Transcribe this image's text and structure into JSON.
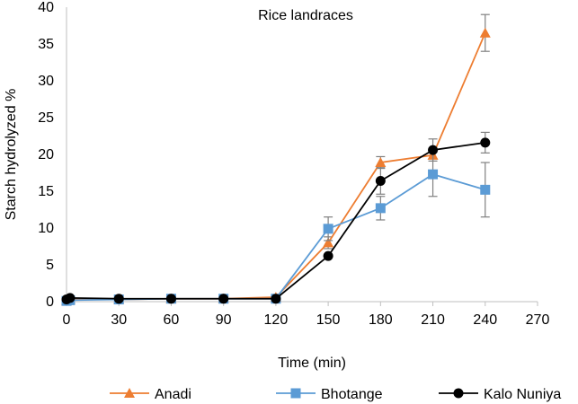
{
  "chart_data": {
    "type": "line",
    "title": "Rice landraces",
    "xlabel": "Time (min)",
    "ylabel": "Starch hydrolyzed %",
    "xlim": [
      0,
      270
    ],
    "ylim": [
      0,
      40
    ],
    "xticks": [
      0,
      30,
      60,
      90,
      120,
      150,
      180,
      210,
      240,
      270
    ],
    "yticks": [
      0,
      5,
      10,
      15,
      20,
      25,
      30,
      35,
      40
    ],
    "grid": false,
    "legend_position": "bottom",
    "x": [
      0,
      2,
      30,
      60,
      90,
      120,
      150,
      180,
      210,
      240
    ],
    "series": [
      {
        "name": "Anadi",
        "color": "#ED7D31",
        "marker": "triangle",
        "values": [
          0.1,
          0.3,
          0.3,
          0.4,
          0.4,
          0.6,
          8.0,
          18.9,
          19.9,
          36.5
        ],
        "errors": [
          0,
          0,
          0,
          0,
          0,
          0,
          0.8,
          0.8,
          0.5,
          2.5
        ]
      },
      {
        "name": "Bhotange",
        "color": "#5B9BD5",
        "marker": "square",
        "values": [
          0.1,
          0.2,
          0.3,
          0.4,
          0.4,
          0.4,
          9.9,
          12.7,
          17.3,
          15.2
        ],
        "errors": [
          0,
          0,
          0,
          0,
          0,
          0,
          1.6,
          1.6,
          3.0,
          3.7
        ]
      },
      {
        "name": "Kalo Nuniya",
        "color": "#000000",
        "marker": "circle",
        "values": [
          0.3,
          0.5,
          0.4,
          0.4,
          0.4,
          0.4,
          6.2,
          16.4,
          20.6,
          21.6
        ],
        "errors": [
          0,
          0,
          0,
          0,
          0,
          0,
          0,
          1.8,
          1.5,
          1.4
        ]
      }
    ]
  }
}
